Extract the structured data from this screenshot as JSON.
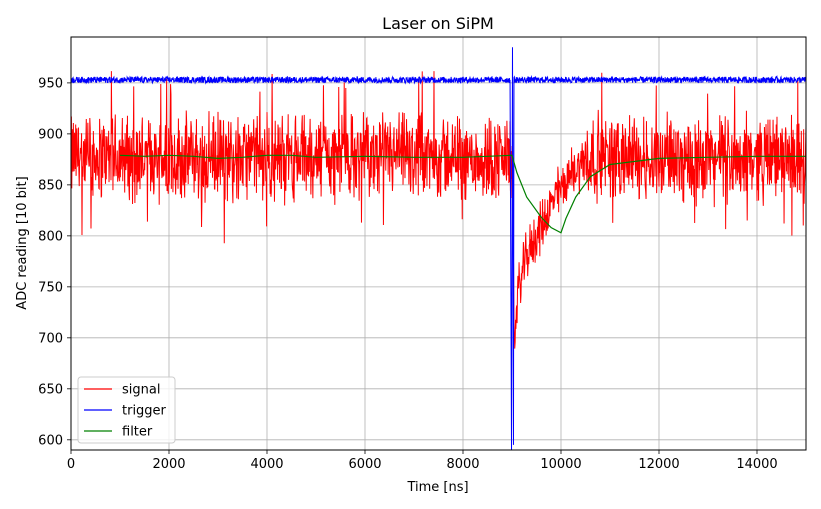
{
  "chart_data": {
    "type": "line",
    "title": "Laser on SiPM",
    "xlabel": "Time [ns]",
    "ylabel": "ADC reading [10 bit]",
    "xlim": [
      0,
      15000
    ],
    "ylim": [
      590,
      995
    ],
    "xticks": [
      0,
      2000,
      4000,
      6000,
      8000,
      10000,
      12000,
      14000
    ],
    "xtick_labels": [
      "0",
      "2000",
      "4000",
      "6000",
      "8000",
      "10000",
      "12000",
      "14000"
    ],
    "yticks": [
      600,
      650,
      700,
      750,
      800,
      850,
      900,
      950
    ],
    "ytick_labels": [
      "600",
      "650",
      "700",
      "750",
      "800",
      "850",
      "900",
      "950"
    ],
    "grid": true,
    "legend_position": "lower-left",
    "series": [
      {
        "name": "signal",
        "color": "#ff0000",
        "baseline": 877,
        "noise_amplitude": 50,
        "x_range": [
          0,
          15000
        ],
        "dip": {
          "x": [
            9000,
            9050,
            9100,
            9200,
            9300,
            9500,
            9700,
            9900,
            10200,
            10500
          ],
          "y": [
            877,
            690,
            740,
            760,
            780,
            800,
            820,
            840,
            860,
            877
          ]
        },
        "max_value": 970,
        "min_value": 687
      },
      {
        "name": "trigger",
        "color": "#0000ff",
        "baseline": 953,
        "noise_amplitude": 3,
        "x_range": [
          0,
          15000
        ],
        "spike": {
          "x": [
            8960,
            8990,
            9010,
            9030,
            9040
          ],
          "y": [
            953,
            590,
            985,
            595,
            953
          ]
        }
      },
      {
        "name": "filter",
        "color": "#008000",
        "x": [
          1000,
          1500,
          2000,
          2500,
          3000,
          3500,
          4000,
          4500,
          5000,
          6000,
          7000,
          8000,
          9000,
          9100,
          9300,
          9600,
          9800,
          10000,
          10100,
          10300,
          10600,
          11000,
          11500,
          12000,
          13000,
          14000,
          15000
        ],
        "y": [
          879,
          878,
          879,
          878,
          876,
          877,
          879,
          879,
          877,
          878,
          877,
          877,
          879,
          862,
          838,
          818,
          808,
          803,
          817,
          838,
          858,
          870,
          873,
          876,
          877,
          878,
          878
        ]
      }
    ]
  }
}
